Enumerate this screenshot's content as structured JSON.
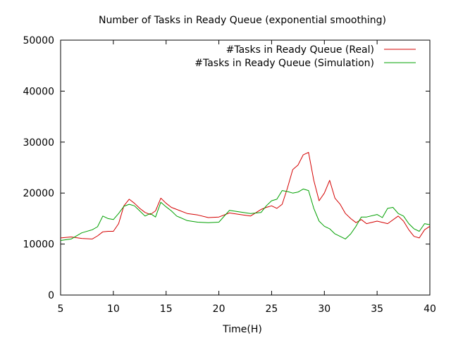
{
  "chart_data": {
    "type": "line",
    "title": "Number of Tasks in Ready Queue (exponential smoothing)",
    "xlabel": "Time(H)",
    "ylabel": "",
    "xlim": [
      5,
      40
    ],
    "ylim": [
      0,
      50000
    ],
    "xticks": [
      "5",
      "10",
      "15",
      "20",
      "25",
      "30",
      "35",
      "40"
    ],
    "yticks": [
      "0",
      "10000",
      "20000",
      "30000",
      "40000",
      "50000"
    ],
    "legend_position": "top-right",
    "grid": false,
    "series": [
      {
        "name": "#Tasks in Ready Queue (Real)",
        "color": "#d40000",
        "x": [
          5,
          6,
          7,
          8,
          8.5,
          9,
          9.5,
          10,
          10.5,
          11,
          11.5,
          12,
          12.5,
          13,
          13.5,
          14,
          14.5,
          15,
          15.5,
          16,
          17,
          18,
          19,
          20,
          21,
          22,
          23,
          24,
          24.5,
          25,
          25.5,
          26,
          26.5,
          27,
          27.5,
          28,
          28.5,
          29,
          29.5,
          30,
          30.5,
          31,
          31.5,
          32,
          32.5,
          33,
          33.5,
          34,
          35,
          36,
          37,
          37.5,
          38,
          38.5,
          39,
          39.5,
          40
        ],
        "y": [
          11200,
          11400,
          11100,
          11000,
          11600,
          12400,
          12500,
          12500,
          14000,
          17500,
          18800,
          18000,
          17000,
          16200,
          15800,
          16500,
          19000,
          18000,
          17200,
          16800,
          16000,
          15700,
          15200,
          15300,
          16100,
          15800,
          15500,
          16800,
          17200,
          17500,
          17000,
          17800,
          21000,
          24600,
          25500,
          27500,
          28000,
          22500,
          18500,
          20000,
          22500,
          19000,
          17800,
          16000,
          15000,
          14200,
          14800,
          14000,
          14500,
          14000,
          15500,
          14500,
          12800,
          11500,
          11200,
          12800,
          13500
        ]
      },
      {
        "name": "#Tasks in Ready Queue (Simulation)",
        "color": "#00a000",
        "x": [
          5,
          6,
          7,
          8,
          8.5,
          9,
          9.5,
          10,
          10.5,
          11,
          11.5,
          12,
          12.5,
          13,
          13.5,
          14,
          14.5,
          15,
          15.5,
          16,
          17,
          18,
          19,
          20,
          21,
          22,
          23,
          24,
          24.5,
          25,
          25.5,
          26,
          26.5,
          27,
          27.5,
          28,
          28.5,
          29,
          29.5,
          30,
          30.5,
          31,
          31.5,
          32,
          32.5,
          33,
          33.5,
          34,
          35,
          35.5,
          36,
          36.5,
          37,
          37.5,
          38,
          38.5,
          39,
          39.5,
          40
        ],
        "y": [
          10700,
          11000,
          12200,
          12800,
          13400,
          15500,
          15000,
          14800,
          16000,
          17400,
          17800,
          17500,
          16500,
          15500,
          16000,
          15300,
          18200,
          17300,
          16500,
          15500,
          14600,
          14300,
          14200,
          14300,
          16600,
          16300,
          16000,
          16200,
          17500,
          18500,
          18800,
          20500,
          20300,
          20000,
          20200,
          20800,
          20500,
          17000,
          14500,
          13500,
          13000,
          12000,
          11500,
          11000,
          12000,
          13500,
          15300,
          15300,
          15800,
          15200,
          17000,
          17200,
          16000,
          15500,
          14000,
          13000,
          12500,
          14000,
          13800
        ]
      }
    ]
  }
}
